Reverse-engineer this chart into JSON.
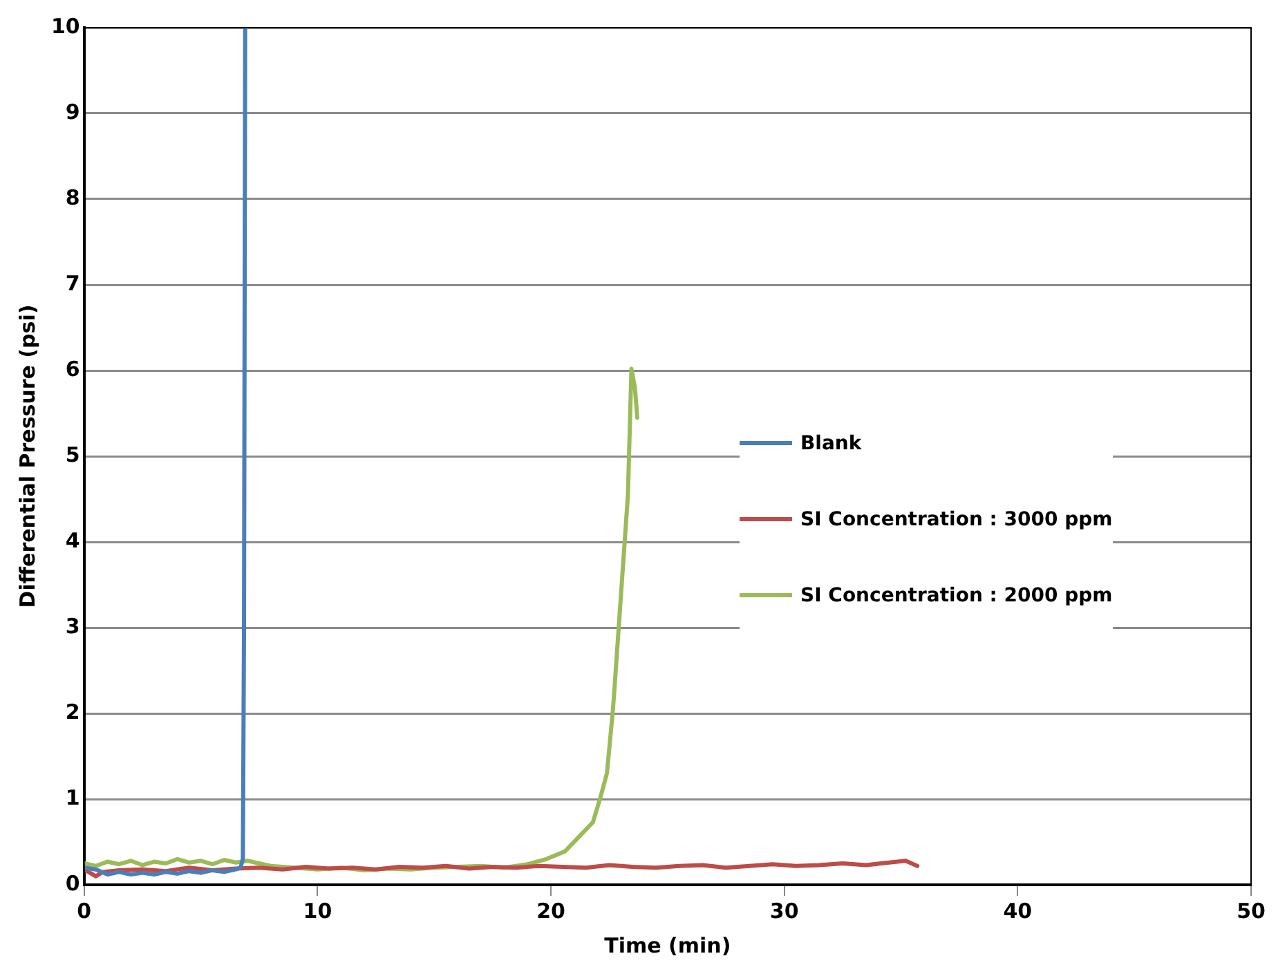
{
  "chart_data": {
    "type": "line",
    "xlabel": "Time (min)",
    "ylabel": "Differential Pressure (psi)",
    "xlim": [
      0,
      50
    ],
    "xticks": [
      0,
      10,
      20,
      30,
      40,
      50
    ],
    "ylim": [
      0,
      10
    ],
    "yticks": [
      0,
      1,
      2,
      3,
      4,
      5,
      6,
      7,
      8,
      9,
      10
    ],
    "grid": "y",
    "legend": "right",
    "marker": "none",
    "line_style": "solid",
    "series": [
      {
        "name": "Blank",
        "color": "#4a7ebb",
        "x": [
          0,
          0.5,
          1,
          1.5,
          2,
          2.5,
          3,
          3.5,
          4,
          4.5,
          5,
          5.5,
          6,
          6.5,
          6.7,
          6.8,
          6.85,
          6.9
        ],
        "values": [
          0.2,
          0.18,
          0.12,
          0.15,
          0.12,
          0.14,
          0.12,
          0.15,
          0.13,
          0.16,
          0.14,
          0.17,
          0.15,
          0.18,
          0.2,
          0.3,
          3,
          10
        ]
      },
      {
        "name": "SI Concentration : 3000 ppm",
        "color": "#be4b48",
        "x": [
          0,
          0.5,
          0.8,
          1.5,
          2.5,
          3.5,
          4.5,
          5.5,
          6.5,
          7.5,
          8.5,
          9.5,
          10.5,
          11.5,
          12.5,
          13.5,
          14.5,
          15.5,
          16.5,
          17.5,
          18.5,
          19.5,
          20.5,
          21.5,
          22.5,
          23.5,
          24.5,
          25.5,
          26.5,
          27.5,
          28.5,
          29.5,
          30.5,
          31.5,
          32.5,
          33.5,
          34.5,
          35.2,
          35.7
        ],
        "values": [
          0.18,
          0.1,
          0.15,
          0.17,
          0.18,
          0.16,
          0.2,
          0.17,
          0.19,
          0.2,
          0.18,
          0.21,
          0.19,
          0.2,
          0.18,
          0.21,
          0.2,
          0.22,
          0.19,
          0.21,
          0.2,
          0.22,
          0.21,
          0.2,
          0.23,
          0.21,
          0.2,
          0.22,
          0.23,
          0.2,
          0.22,
          0.24,
          0.22,
          0.23,
          0.25,
          0.23,
          0.26,
          0.28,
          0.22
        ]
      },
      {
        "name": "SI Concentration : 2000 ppm",
        "color": "#9bbb59",
        "x": [
          0,
          0.5,
          1,
          1.5,
          2,
          2.5,
          3,
          3.5,
          4,
          4.5,
          5,
          5.5,
          6,
          6.5,
          7,
          7.5,
          8,
          9,
          10,
          11,
          12,
          13,
          14,
          15,
          16,
          17,
          18,
          19,
          19.8,
          20.6,
          21.2,
          21.8,
          22.1,
          22.4,
          22.65,
          22.7,
          23.3,
          23.45,
          23.6,
          23.7
        ],
        "values": [
          0.25,
          0.22,
          0.27,
          0.24,
          0.28,
          0.23,
          0.27,
          0.25,
          0.3,
          0.26,
          0.28,
          0.24,
          0.29,
          0.26,
          0.28,
          0.25,
          0.22,
          0.2,
          0.18,
          0.2,
          0.17,
          0.19,
          0.18,
          0.2,
          0.21,
          0.22,
          0.2,
          0.24,
          0.3,
          0.39,
          0.56,
          0.73,
          1.0,
          1.3,
          2.02,
          2.2,
          4.55,
          6.02,
          5.8,
          5.45
        ]
      }
    ]
  }
}
